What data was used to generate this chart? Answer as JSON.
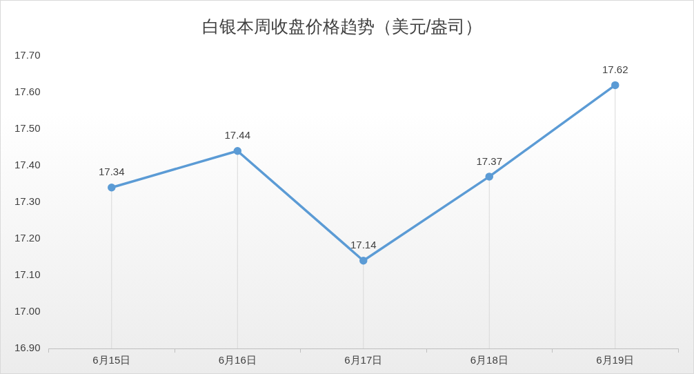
{
  "chart_data": {
    "type": "line",
    "title": "白银本周收盘价格趋势（美元/盎司）",
    "categories": [
      "6月15日",
      "6月16日",
      "6月17日",
      "6月18日",
      "6月19日"
    ],
    "series": [
      {
        "color": "#5b9bd5",
        "values": [
          17.34,
          17.44,
          17.14,
          17.37,
          17.62
        ]
      }
    ],
    "ylim": [
      16.9,
      17.7
    ],
    "yticks": [
      {
        "value": 16.9,
        "label": "16.90"
      },
      {
        "value": 17.0,
        "label": "17.00"
      },
      {
        "value": 17.1,
        "label": "17.10"
      },
      {
        "value": 17.2,
        "label": "17.20"
      },
      {
        "value": 17.3,
        "label": "17.30"
      },
      {
        "value": 17.4,
        "label": "17.40"
      },
      {
        "value": 17.5,
        "label": "17.50"
      },
      {
        "value": 17.6,
        "label": "17.60"
      },
      {
        "value": 17.7,
        "label": "17.70"
      }
    ],
    "grid": "x",
    "legend": false,
    "marker": "circle",
    "line_style": "solid",
    "data_labels": true
  }
}
